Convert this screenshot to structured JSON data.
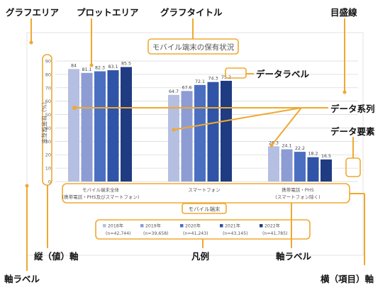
{
  "callouts": {
    "chart_area": "グラフエリア",
    "plot_area": "プロットエリア",
    "chart_title": "グラフタイトル",
    "gridlines": "目盛線",
    "data_label": "データラベル",
    "data_series": "データ系列",
    "data_point": "データ要素",
    "value_axis": "縦（値）軸",
    "legend": "凡例",
    "axis_label": "軸ラベル",
    "category_axis": "横（項目）軸"
  },
  "colors": {
    "callout_line": "#f0a830",
    "callout_text": "#111111",
    "grid": "#d9d9d9",
    "axis_text": "#666666"
  },
  "chart_data": {
    "type": "bar",
    "title": "モバイル端末の保有状況",
    "xlabel": "モバイル端末",
    "ylabel": "（%）世帯保有率",
    "ylim": [
      0,
      90
    ],
    "yticks": [
      0,
      10,
      20,
      30,
      40,
      50,
      60,
      70,
      80,
      90
    ],
    "grid": true,
    "legend_position": "bottom",
    "categories": [
      [
        "モバイル端末全体",
        "(携帯電話・PHS及びスマートフォン)"
      ],
      [
        "スマートフォン"
      ],
      [
        "携帯電話・PHS",
        "(スマートフォン除く)"
      ]
    ],
    "series": [
      {
        "name": "2018年",
        "n": "(n=42,744)",
        "color": "#b4bfe2",
        "values": [
          84,
          64.7,
          26.3
        ]
      },
      {
        "name": "2019年",
        "n": "(n=39,658)",
        "color": "#8d9dd4",
        "values": [
          81.1,
          67.6,
          24.1
        ]
      },
      {
        "name": "2020年",
        "n": "(n=41,243)",
        "color": "#4a6fc1",
        "values": [
          82.3,
          72.1,
          22.2
        ]
      },
      {
        "name": "2021年",
        "n": "(n=43,145)",
        "color": "#2f53a6",
        "values": [
          83.1,
          74.3,
          18.2
        ]
      },
      {
        "name": "2022年",
        "n": "(n=41,785)",
        "color": "#1f3b82",
        "values": [
          85.5,
          75.2,
          16.5
        ]
      }
    ]
  }
}
